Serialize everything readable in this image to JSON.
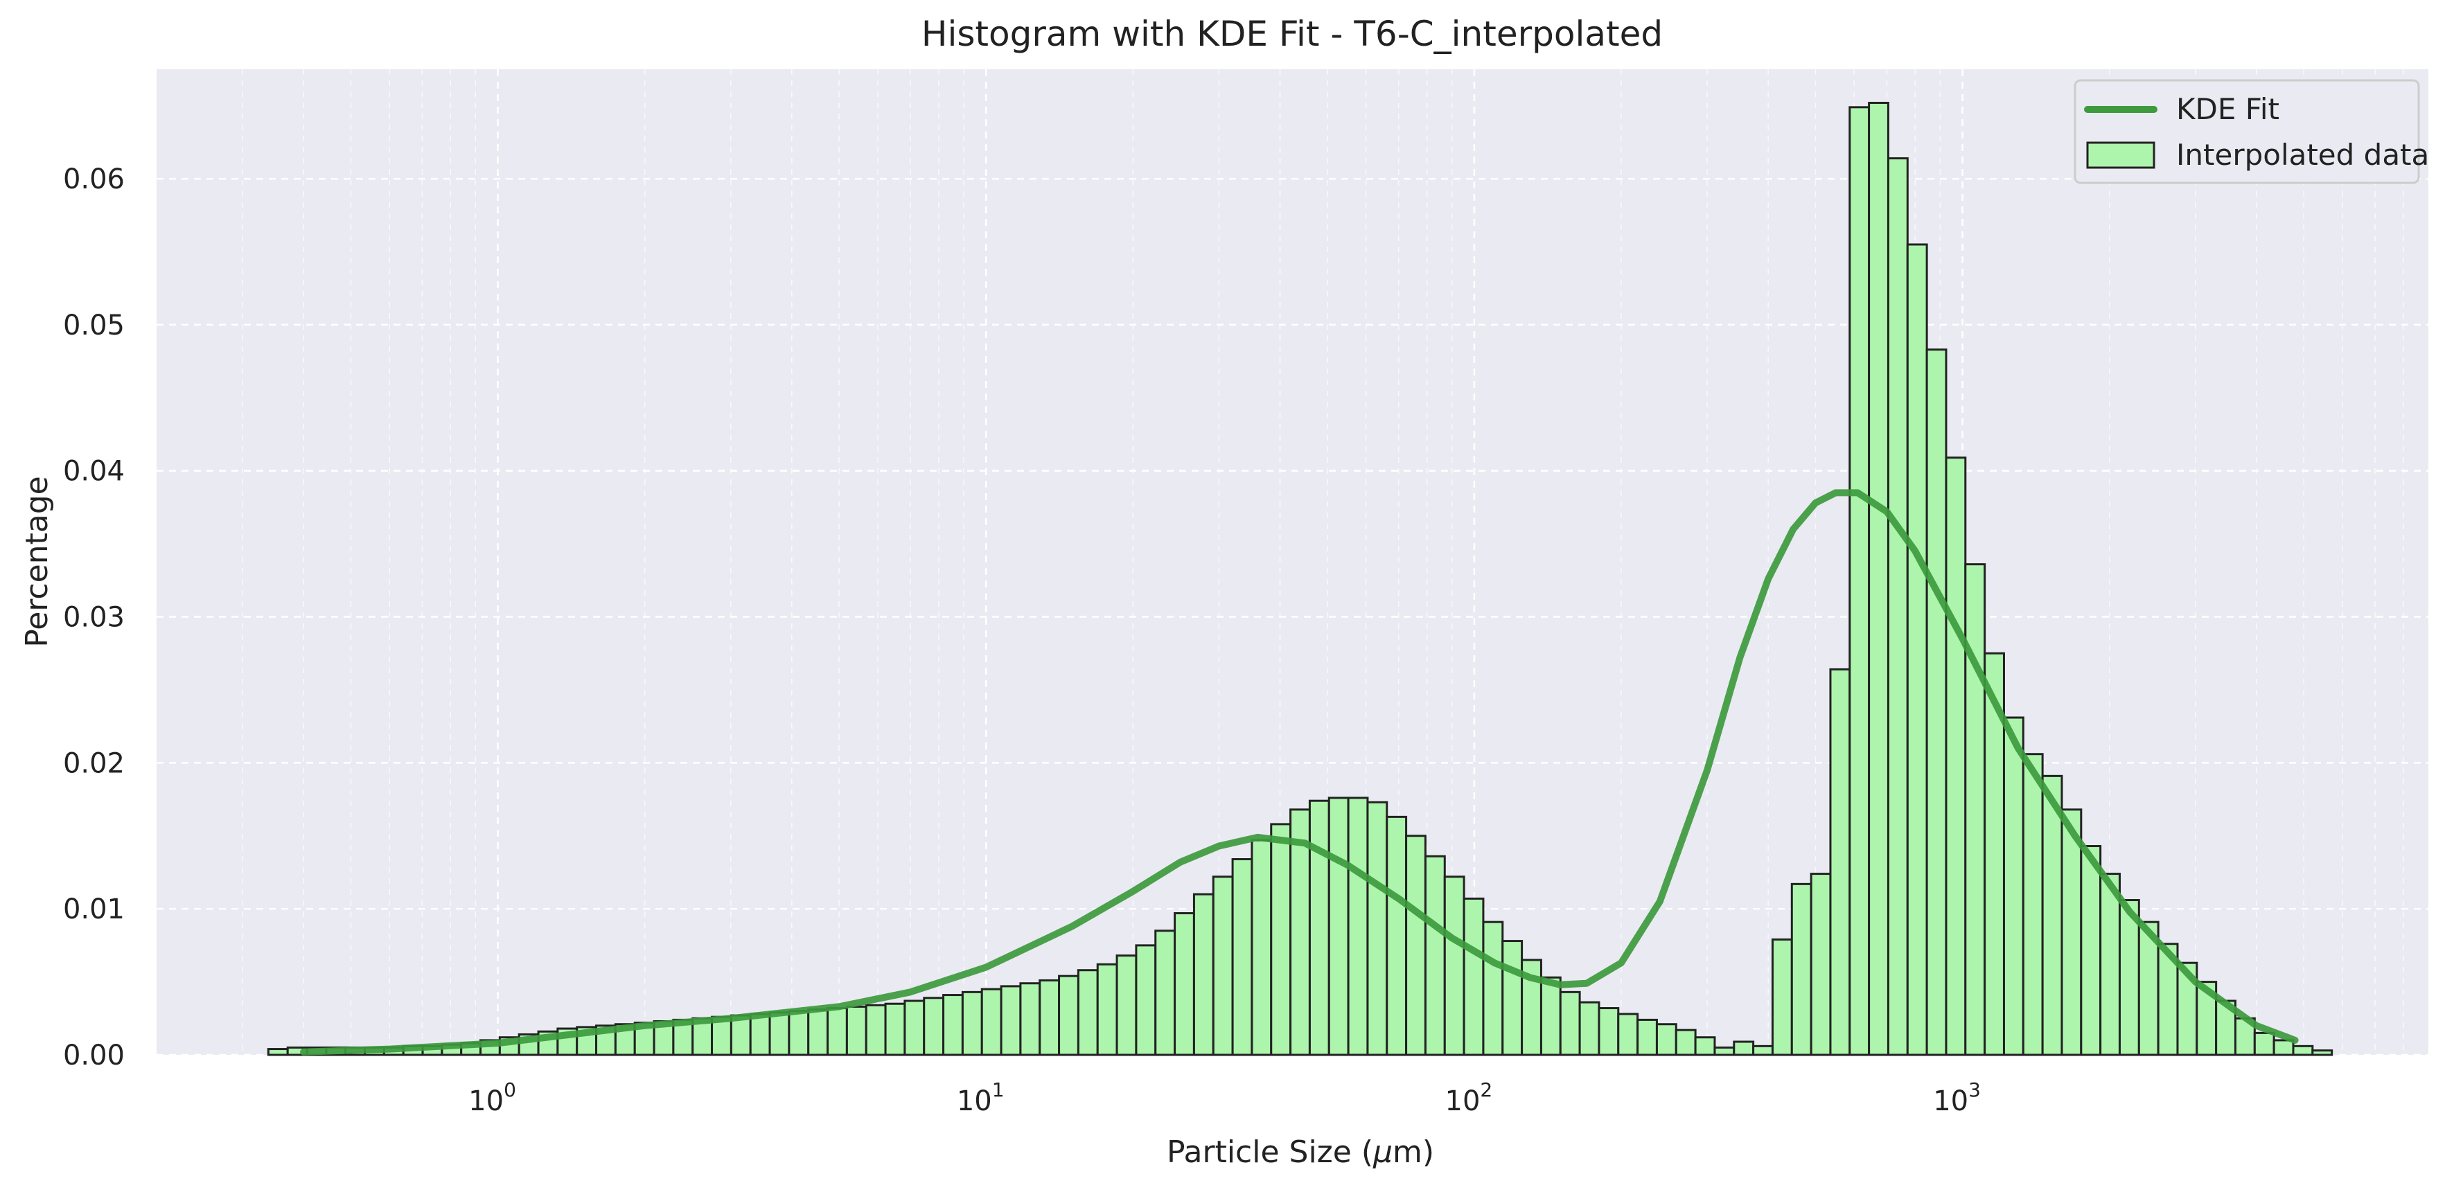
{
  "chart_data": {
    "type": "bar",
    "title": "Histogram with KDE Fit - T6-C_interpolated",
    "xlabel": "Particle Size (",
    "xlabel_mu": "μ",
    "xlabel_unit": "m)",
    "ylabel": "Percentage",
    "x_scale": "log",
    "x_ticks": [
      {
        "base": "10",
        "exp": "0",
        "value": 1
      },
      {
        "base": "10",
        "exp": "1",
        "value": 10
      },
      {
        "base": "10",
        "exp": "2",
        "value": 100
      },
      {
        "base": "10",
        "exp": "3",
        "value": 1000
      }
    ],
    "y_ticks": [
      "0.00",
      "0.01",
      "0.02",
      "0.03",
      "0.04",
      "0.05",
      "0.06"
    ],
    "xlim": [
      0.2,
      9000
    ],
    "ylim": [
      0,
      0.0675
    ],
    "grid": true,
    "legend_position": "top-right",
    "legend": [
      {
        "label": "KDE Fit",
        "kind": "line"
      },
      {
        "label": "Interpolated data",
        "kind": "patch"
      }
    ],
    "colors": {
      "bar_fill": "#adf5ad",
      "bar_edge": "#222222",
      "kde_line": "#3d9a3d",
      "plot_bg": "#eaeaf2",
      "grid": "#ffffff"
    },
    "bins_log10": {
      "start": -0.47,
      "width": 0.0395
    },
    "bin_values": [
      0.0004,
      0.0005,
      0.0005,
      0.0005,
      0.0005,
      0.0005,
      0.0005,
      0.0006,
      0.0006,
      0.0007,
      0.0008,
      0.001,
      0.0012,
      0.0014,
      0.0016,
      0.0018,
      0.0019,
      0.002,
      0.0021,
      0.0022,
      0.0023,
      0.0024,
      0.0025,
      0.0026,
      0.0027,
      0.0028,
      0.0029,
      0.003,
      0.0031,
      0.0032,
      0.0033,
      0.0034,
      0.0035,
      0.0037,
      0.0039,
      0.0041,
      0.0043,
      0.0045,
      0.0047,
      0.0049,
      0.0051,
      0.0054,
      0.0058,
      0.0062,
      0.0068,
      0.0075,
      0.0085,
      0.0097,
      0.011,
      0.0122,
      0.0134,
      0.0147,
      0.0158,
      0.0168,
      0.0174,
      0.0176,
      0.0176,
      0.0173,
      0.0163,
      0.015,
      0.0136,
      0.0122,
      0.0107,
      0.0091,
      0.0078,
      0.0065,
      0.0053,
      0.0043,
      0.0036,
      0.0032,
      0.0028,
      0.0024,
      0.0021,
      0.0017,
      0.0012,
      0.0005,
      0.0009,
      0.0006,
      0.0079,
      0.0117,
      0.0124,
      0.0264,
      0.0649,
      0.0652,
      0.0614,
      0.0555,
      0.0483,
      0.0409,
      0.0336,
      0.0275,
      0.0231,
      0.0206,
      0.0191,
      0.0168,
      0.0143,
      0.0124,
      0.0106,
      0.0091,
      0.0076,
      0.0063,
      0.005,
      0.0037,
      0.0025,
      0.0015,
      0.001,
      0.0006,
      0.0003
    ],
    "kde_x": [
      0.4,
      0.6,
      1.0,
      1.5,
      2.0,
      3.0,
      5.0,
      7.0,
      10,
      15,
      20,
      25,
      30,
      36,
      45,
      55,
      70,
      90,
      110,
      130,
      150,
      170,
      200,
      240,
      300,
      350,
      400,
      450,
      500,
      550,
      610,
      700,
      800,
      1000,
      1300,
      1700,
      2200,
      3000,
      4000,
      4800
    ],
    "kde_y": [
      0.0002,
      0.0004,
      0.0008,
      0.0015,
      0.002,
      0.0025,
      0.0033,
      0.0043,
      0.006,
      0.0088,
      0.0112,
      0.0132,
      0.0143,
      0.0149,
      0.0145,
      0.013,
      0.0107,
      0.008,
      0.0063,
      0.0053,
      0.0048,
      0.0049,
      0.0063,
      0.0105,
      0.0195,
      0.0272,
      0.0326,
      0.036,
      0.0378,
      0.0385,
      0.0385,
      0.0372,
      0.0345,
      0.0285,
      0.021,
      0.015,
      0.0098,
      0.005,
      0.002,
      0.001
    ]
  }
}
